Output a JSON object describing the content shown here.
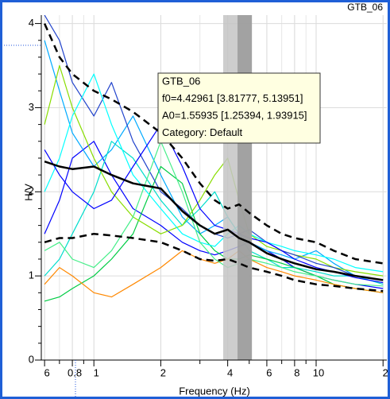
{
  "chart_data": {
    "type": "line",
    "corner_label": "GTB_06",
    "xlabel": "Frequency (Hz)",
    "ylabel": "H/V",
    "log_x": true,
    "grid": true,
    "xlim": [
      0.58,
      20.8
    ],
    "ylim": [
      0,
      4.1
    ],
    "xticks": [
      {
        "value": 0.6,
        "label": "6"
      },
      0.8,
      1,
      2,
      4,
      6,
      8,
      10,
      {
        "value": 20,
        "label": "2"
      }
    ],
    "xminor": [
      0.7,
      0.9,
      3,
      5,
      7,
      9
    ],
    "yticks": [
      0,
      1,
      2,
      3,
      4
    ],
    "f0": 4.42961,
    "f0_range": [
      3.81777,
      5.13951
    ],
    "band_colors": [
      "#c4c4c4",
      "#9a9a9a"
    ],
    "annotation": [
      "GTB_06",
      "f0=4.42961 [3.81777, 5.13951]",
      "A0=1.55935 [1.25394, 1.93915]",
      "Category: Default"
    ],
    "x": [
      0.6,
      0.7,
      0.8,
      1,
      1.2,
      1.5,
      2,
      2.5,
      3,
      3.5,
      4,
      4.5,
      5,
      6,
      7,
      8,
      10,
      12,
      15,
      20
    ],
    "series": [
      {
        "color": "#0000ff",
        "values": [
          1.5,
          1.9,
          2.4,
          2.6,
          2.2,
          1.8,
          1.6,
          1.4,
          1.3,
          1.25,
          1.3,
          1.35,
          1.4,
          1.3,
          1.2,
          1.1,
          1.0,
          0.95,
          0.9,
          0.85
        ]
      },
      {
        "color": "#00aaff",
        "values": [
          3.8,
          3.2,
          2.7,
          2.3,
          2.5,
          2.9,
          2.2,
          1.7,
          1.5,
          1.6,
          1.7,
          1.5,
          1.4,
          1.3,
          1.25,
          1.2,
          1.3,
          1.15,
          1.0,
          0.95
        ]
      },
      {
        "color": "#00ddcc",
        "values": [
          1.0,
          1.2,
          1.5,
          2.0,
          2.6,
          2.4,
          1.9,
          1.6,
          1.8,
          2.0,
          1.7,
          1.5,
          1.3,
          1.2,
          1.1,
          1.1,
          1.05,
          1.0,
          1.0,
          0.9
        ]
      },
      {
        "color": "#00cc44",
        "values": [
          0.7,
          0.75,
          0.85,
          1.0,
          1.2,
          1.5,
          2.3,
          2.1,
          1.5,
          1.3,
          1.2,
          1.2,
          1.25,
          1.2,
          1.15,
          1.1,
          1.0,
          0.9,
          0.85,
          0.8
        ]
      },
      {
        "color": "#88dd00",
        "values": [
          2.8,
          3.5,
          3.0,
          2.4,
          2.0,
          1.7,
          1.5,
          1.6,
          1.9,
          2.2,
          2.4,
          1.9,
          1.5,
          1.35,
          1.3,
          1.25,
          1.2,
          1.1,
          1.05,
          1.0
        ]
      },
      {
        "color": "#ff8800",
        "values": [
          0.9,
          1.1,
          1.0,
          0.8,
          0.75,
          0.9,
          1.1,
          1.3,
          1.2,
          1.15,
          1.2,
          1.3,
          1.2,
          1.1,
          1.05,
          1.0,
          0.95,
          0.9,
          0.85,
          0.8
        ]
      },
      {
        "color": "#2244cc",
        "values": [
          4.1,
          3.8,
          3.3,
          2.9,
          3.3,
          2.6,
          2.0,
          1.8,
          1.6,
          1.5,
          1.45,
          1.5,
          1.55,
          1.4,
          1.3,
          1.25,
          1.15,
          1.1,
          1.0,
          0.95
        ]
      },
      {
        "color": "#00ffff",
        "values": [
          2.0,
          2.4,
          2.9,
          3.4,
          2.8,
          2.2,
          1.8,
          1.5,
          1.4,
          1.35,
          1.5,
          1.6,
          1.5,
          1.4,
          1.35,
          1.3,
          1.25,
          1.2,
          1.1,
          1.05
        ]
      },
      {
        "color": "#44ee88",
        "values": [
          1.3,
          1.4,
          1.2,
          1.1,
          1.3,
          1.7,
          2.6,
          2.0,
          1.4,
          1.2,
          1.1,
          1.15,
          1.2,
          1.15,
          1.1,
          1.05,
          1.0,
          0.95,
          0.9,
          0.88
        ]
      },
      {
        "color": "#0000ff",
        "values": [
          2.5,
          2.2,
          2.0,
          1.8,
          1.9,
          2.3,
          2.8,
          2.3,
          1.8,
          1.6,
          1.55,
          1.5,
          1.45,
          1.4,
          1.3,
          1.2,
          1.1,
          1.05,
          0.98,
          0.92
        ]
      },
      {
        "color": "#000000",
        "line_style": "solid",
        "width": 2.5,
        "values": [
          2.36,
          2.3,
          2.27,
          2.3,
          2.2,
          2.1,
          2.04,
          1.77,
          1.6,
          1.5,
          1.55,
          1.45,
          1.4,
          1.27,
          1.2,
          1.15,
          1.08,
          1.05,
          1.0,
          0.95
        ]
      },
      {
        "color": "#000000",
        "line_style": "dashed",
        "width": 2.5,
        "values": [
          4.0,
          3.6,
          3.4,
          3.2,
          3.1,
          2.95,
          2.7,
          2.4,
          2.1,
          1.9,
          1.8,
          1.85,
          1.75,
          1.6,
          1.5,
          1.45,
          1.4,
          1.3,
          1.2,
          1.15
        ]
      },
      {
        "color": "#000000",
        "line_style": "dashed",
        "width": 2.5,
        "values": [
          1.4,
          1.45,
          1.45,
          1.5,
          1.48,
          1.45,
          1.4,
          1.3,
          1.2,
          1.18,
          1.2,
          1.15,
          1.1,
          1.05,
          1.0,
          0.95,
          0.9,
          0.88,
          0.85,
          0.82
        ]
      }
    ]
  }
}
